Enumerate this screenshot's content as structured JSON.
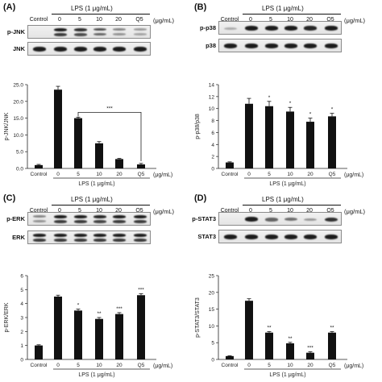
{
  "common": {
    "lps_label": "LPS (1 μg/mL)",
    "unit_label": "(μg/mL)",
    "lane_labels": [
      "Control",
      "0",
      "5",
      "10",
      "20",
      "Q5"
    ]
  },
  "panels": [
    {
      "id": "A",
      "panel_label": "(A)",
      "blots": [
        {
          "name": "p-JNK",
          "bands": [
            0.0,
            0.95,
            0.75,
            0.6,
            0.35,
            0.25
          ],
          "double": true
        },
        {
          "name": "JNK",
          "bands": [
            0.9,
            0.9,
            0.9,
            0.9,
            0.9,
            0.9
          ],
          "double": false
        }
      ]
    },
    {
      "id": "B",
      "panel_label": "(B)",
      "blots": [
        {
          "name": "p-p38",
          "bands": [
            0.15,
            0.95,
            0.9,
            0.85,
            0.8,
            0.85
          ],
          "double": false
        },
        {
          "name": "p38",
          "bands": [
            0.9,
            0.9,
            0.9,
            0.9,
            0.9,
            0.9
          ],
          "double": false
        }
      ]
    },
    {
      "id": "C",
      "panel_label": "(C)",
      "blots": [
        {
          "name": "p-ERK",
          "bands": [
            0.35,
            0.95,
            0.85,
            0.8,
            0.85,
            0.95
          ],
          "double": true
        },
        {
          "name": "ERK",
          "bands": [
            0.9,
            0.9,
            0.9,
            0.9,
            0.9,
            0.9
          ],
          "double": true
        }
      ]
    },
    {
      "id": "D",
      "panel_label": "(D)",
      "blots": [
        {
          "name": "p-STAT3",
          "bands": [
            0.0,
            0.85,
            0.5,
            0.45,
            0.25,
            0.75
          ],
          "double": false
        },
        {
          "name": "STAT3",
          "bands": [
            0.9,
            0.9,
            0.9,
            0.9,
            0.9,
            0.9
          ],
          "double": false
        }
      ]
    }
  ],
  "chart_data": [
    {
      "type": "bar",
      "panel": "A",
      "categories": [
        "Control",
        "0",
        "5",
        "10",
        "20",
        "Q5"
      ],
      "values": [
        1,
        23.5,
        15,
        7.5,
        2.8,
        1.2
      ],
      "errors": [
        0.2,
        1.0,
        0.3,
        0.5,
        0.2,
        0.3
      ],
      "significance": [
        "",
        "",
        "",
        "",
        "",
        ""
      ],
      "bracket": {
        "from": "5",
        "to": "Q5",
        "label": "***"
      },
      "ylabel": "p-JNK/JNK",
      "xlabel": "LPS (1 μg/mL)",
      "unit": "(μg/mL)",
      "ylim": [
        0,
        25
      ],
      "yticks": [
        0,
        5,
        10,
        15,
        20,
        25
      ],
      "ytick_labels": [
        "0.0",
        "5.0",
        "10.0",
        "15.0",
        "20.0",
        "25.0"
      ]
    },
    {
      "type": "bar",
      "panel": "B",
      "categories": [
        "Control",
        "0",
        "5",
        "10",
        "20",
        "Q5"
      ],
      "values": [
        1,
        10.8,
        10.4,
        9.5,
        7.8,
        8.7
      ],
      "errors": [
        0.1,
        0.9,
        0.8,
        0.7,
        0.6,
        0.5
      ],
      "significance": [
        "",
        "",
        "*",
        "*",
        "*",
        "*"
      ],
      "bracket": null,
      "ylabel": "p-p38/p38",
      "xlabel": "LPS (1 μg/mL)",
      "unit": "(μg/mL)",
      "ylim": [
        0,
        14
      ],
      "yticks": [
        0,
        2,
        4,
        6,
        8,
        10,
        12,
        14
      ],
      "ytick_labels": [
        "0",
        "2",
        "4",
        "6",
        "8",
        "10",
        "12",
        "14"
      ]
    },
    {
      "type": "bar",
      "panel": "C",
      "categories": [
        "Control",
        "0",
        "5",
        "10",
        "20",
        "Q5"
      ],
      "values": [
        1,
        4.5,
        3.5,
        2.9,
        3.25,
        4.6
      ],
      "errors": [
        0.05,
        0.1,
        0.1,
        0.1,
        0.1,
        0.1
      ],
      "significance": [
        "",
        "",
        "*",
        "**",
        "***",
        "***"
      ],
      "bracket": null,
      "ylabel": "p-ERK/ERK",
      "xlabel": "LPS (1 μg/mL)",
      "unit": "(μg/mL)",
      "ylim": [
        0,
        6
      ],
      "yticks": [
        0,
        1,
        2,
        3,
        4,
        5,
        6
      ],
      "ytick_labels": [
        "0",
        "1",
        "2",
        "3",
        "4",
        "5",
        "6"
      ]
    },
    {
      "type": "bar",
      "panel": "D",
      "categories": [
        "Control",
        "0",
        "5",
        "10",
        "20",
        "Q5"
      ],
      "values": [
        1,
        17.5,
        8,
        4.8,
        2,
        8
      ],
      "errors": [
        0.1,
        0.6,
        0.3,
        0.3,
        0.3,
        0.3
      ],
      "significance": [
        "",
        "",
        "**",
        "**",
        "***",
        "**"
      ],
      "bracket": null,
      "ylabel": "p-STAT3/STAT3",
      "xlabel": "LPS (1 μg/mL)",
      "unit": "(μg/mL)",
      "ylim": [
        0,
        25
      ],
      "yticks": [
        0,
        5,
        10,
        15,
        20,
        25
      ],
      "ytick_labels": [
        "0",
        "5",
        "10",
        "15",
        "20",
        "25"
      ]
    }
  ]
}
